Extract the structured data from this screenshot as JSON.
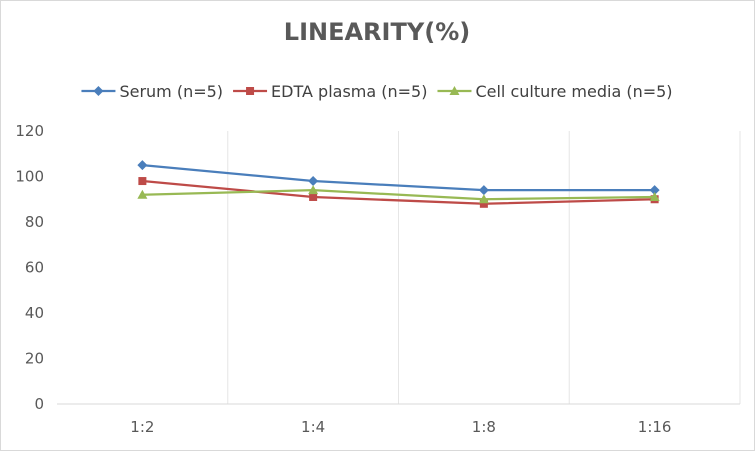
{
  "chart_data": {
    "type": "line",
    "title": "LINEARITY(%)",
    "xlabel": "",
    "ylabel": "",
    "categories": [
      "1:2",
      "1:4",
      "1:8",
      "1:16"
    ],
    "ylim": [
      0,
      120
    ],
    "yticks": [
      0,
      20,
      40,
      60,
      80,
      100,
      120
    ],
    "grid": "vertical",
    "legend": "top",
    "series": [
      {
        "name": "Serum (n=5)",
        "color": "#4a7ebb",
        "marker": "diamond",
        "values": [
          105,
          98,
          94,
          94
        ]
      },
      {
        "name": "EDTA plasma (n=5)",
        "color": "#be4b48",
        "marker": "square",
        "values": [
          98,
          91,
          88,
          90
        ]
      },
      {
        "name": "Cell culture media (n=5)",
        "color": "#98b954",
        "marker": "triangle",
        "values": [
          92,
          94,
          90,
          91
        ]
      }
    ]
  }
}
